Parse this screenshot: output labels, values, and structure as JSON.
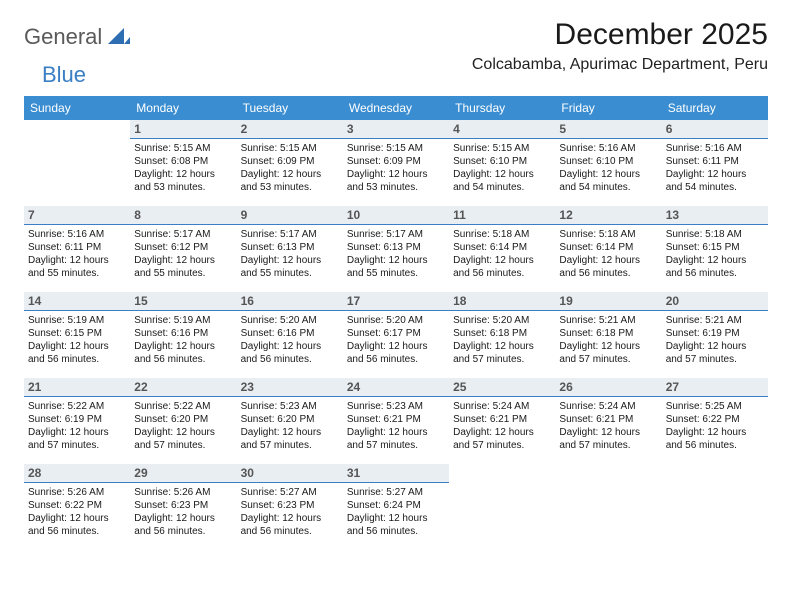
{
  "logo": {
    "text1": "General",
    "text2": "Blue"
  },
  "title": "December 2025",
  "location": "Colcabamba, Apurimac Department, Peru",
  "colors": {
    "header_bg": "#3a8dd0",
    "header_text": "#ffffff",
    "daybar_bg": "#e9eef3",
    "daybar_border": "#3a7fc4",
    "text": "#1a1a1a",
    "logo_gray": "#5a5a5a",
    "logo_blue": "#3a7fc4"
  },
  "calendar": {
    "type": "table",
    "columns": [
      "Sunday",
      "Monday",
      "Tuesday",
      "Wednesday",
      "Thursday",
      "Friday",
      "Saturday"
    ],
    "weeks": [
      [
        null,
        {
          "n": "1",
          "sr": "5:15 AM",
          "ss": "6:08 PM",
          "dl": "12 hours and 53 minutes."
        },
        {
          "n": "2",
          "sr": "5:15 AM",
          "ss": "6:09 PM",
          "dl": "12 hours and 53 minutes."
        },
        {
          "n": "3",
          "sr": "5:15 AM",
          "ss": "6:09 PM",
          "dl": "12 hours and 53 minutes."
        },
        {
          "n": "4",
          "sr": "5:15 AM",
          "ss": "6:10 PM",
          "dl": "12 hours and 54 minutes."
        },
        {
          "n": "5",
          "sr": "5:16 AM",
          "ss": "6:10 PM",
          "dl": "12 hours and 54 minutes."
        },
        {
          "n": "6",
          "sr": "5:16 AM",
          "ss": "6:11 PM",
          "dl": "12 hours and 54 minutes."
        }
      ],
      [
        {
          "n": "7",
          "sr": "5:16 AM",
          "ss": "6:11 PM",
          "dl": "12 hours and 55 minutes."
        },
        {
          "n": "8",
          "sr": "5:17 AM",
          "ss": "6:12 PM",
          "dl": "12 hours and 55 minutes."
        },
        {
          "n": "9",
          "sr": "5:17 AM",
          "ss": "6:13 PM",
          "dl": "12 hours and 55 minutes."
        },
        {
          "n": "10",
          "sr": "5:17 AM",
          "ss": "6:13 PM",
          "dl": "12 hours and 55 minutes."
        },
        {
          "n": "11",
          "sr": "5:18 AM",
          "ss": "6:14 PM",
          "dl": "12 hours and 56 minutes."
        },
        {
          "n": "12",
          "sr": "5:18 AM",
          "ss": "6:14 PM",
          "dl": "12 hours and 56 minutes."
        },
        {
          "n": "13",
          "sr": "5:18 AM",
          "ss": "6:15 PM",
          "dl": "12 hours and 56 minutes."
        }
      ],
      [
        {
          "n": "14",
          "sr": "5:19 AM",
          "ss": "6:15 PM",
          "dl": "12 hours and 56 minutes."
        },
        {
          "n": "15",
          "sr": "5:19 AM",
          "ss": "6:16 PM",
          "dl": "12 hours and 56 minutes."
        },
        {
          "n": "16",
          "sr": "5:20 AM",
          "ss": "6:16 PM",
          "dl": "12 hours and 56 minutes."
        },
        {
          "n": "17",
          "sr": "5:20 AM",
          "ss": "6:17 PM",
          "dl": "12 hours and 56 minutes."
        },
        {
          "n": "18",
          "sr": "5:20 AM",
          "ss": "6:18 PM",
          "dl": "12 hours and 57 minutes."
        },
        {
          "n": "19",
          "sr": "5:21 AM",
          "ss": "6:18 PM",
          "dl": "12 hours and 57 minutes."
        },
        {
          "n": "20",
          "sr": "5:21 AM",
          "ss": "6:19 PM",
          "dl": "12 hours and 57 minutes."
        }
      ],
      [
        {
          "n": "21",
          "sr": "5:22 AM",
          "ss": "6:19 PM",
          "dl": "12 hours and 57 minutes."
        },
        {
          "n": "22",
          "sr": "5:22 AM",
          "ss": "6:20 PM",
          "dl": "12 hours and 57 minutes."
        },
        {
          "n": "23",
          "sr": "5:23 AM",
          "ss": "6:20 PM",
          "dl": "12 hours and 57 minutes."
        },
        {
          "n": "24",
          "sr": "5:23 AM",
          "ss": "6:21 PM",
          "dl": "12 hours and 57 minutes."
        },
        {
          "n": "25",
          "sr": "5:24 AM",
          "ss": "6:21 PM",
          "dl": "12 hours and 57 minutes."
        },
        {
          "n": "26",
          "sr": "5:24 AM",
          "ss": "6:21 PM",
          "dl": "12 hours and 57 minutes."
        },
        {
          "n": "27",
          "sr": "5:25 AM",
          "ss": "6:22 PM",
          "dl": "12 hours and 56 minutes."
        }
      ],
      [
        {
          "n": "28",
          "sr": "5:26 AM",
          "ss": "6:22 PM",
          "dl": "12 hours and 56 minutes."
        },
        {
          "n": "29",
          "sr": "5:26 AM",
          "ss": "6:23 PM",
          "dl": "12 hours and 56 minutes."
        },
        {
          "n": "30",
          "sr": "5:27 AM",
          "ss": "6:23 PM",
          "dl": "12 hours and 56 minutes."
        },
        {
          "n": "31",
          "sr": "5:27 AM",
          "ss": "6:24 PM",
          "dl": "12 hours and 56 minutes."
        },
        null,
        null,
        null
      ]
    ],
    "labels": {
      "sunrise": "Sunrise:",
      "sunset": "Sunset:",
      "daylight": "Daylight:"
    },
    "fontsize_header": 12,
    "fontsize_body": 10,
    "fontsize_daynum": 12
  }
}
